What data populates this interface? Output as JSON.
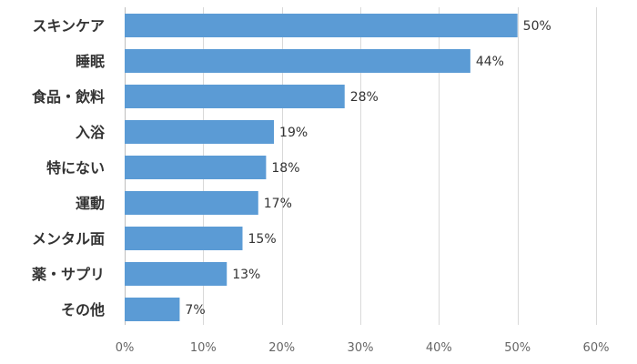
{
  "chart_data": {
    "type": "bar",
    "orientation": "horizontal",
    "title": "",
    "xlabel": "",
    "ylabel": "",
    "categories": [
      "スキンケア",
      "睡眠",
      "食品・飲料",
      "入浴",
      "特にない",
      "運動",
      "メンタル面",
      "薬・サプリ",
      "その他"
    ],
    "values": [
      50,
      44,
      28,
      19,
      18,
      17,
      15,
      13,
      7
    ],
    "value_labels": [
      "50%",
      "44%",
      "28%",
      "19%",
      "18%",
      "17%",
      "15%",
      "13%",
      "7%"
    ],
    "xlim": [
      0,
      60
    ],
    "x_ticks": [
      0,
      10,
      20,
      30,
      40,
      50,
      60
    ],
    "x_tick_labels": [
      "0%",
      "10%",
      "20%",
      "30%",
      "40%",
      "50%",
      "60%"
    ],
    "grid": true,
    "legend": "none",
    "colors": {
      "bar": "#5B9BD5"
    }
  }
}
